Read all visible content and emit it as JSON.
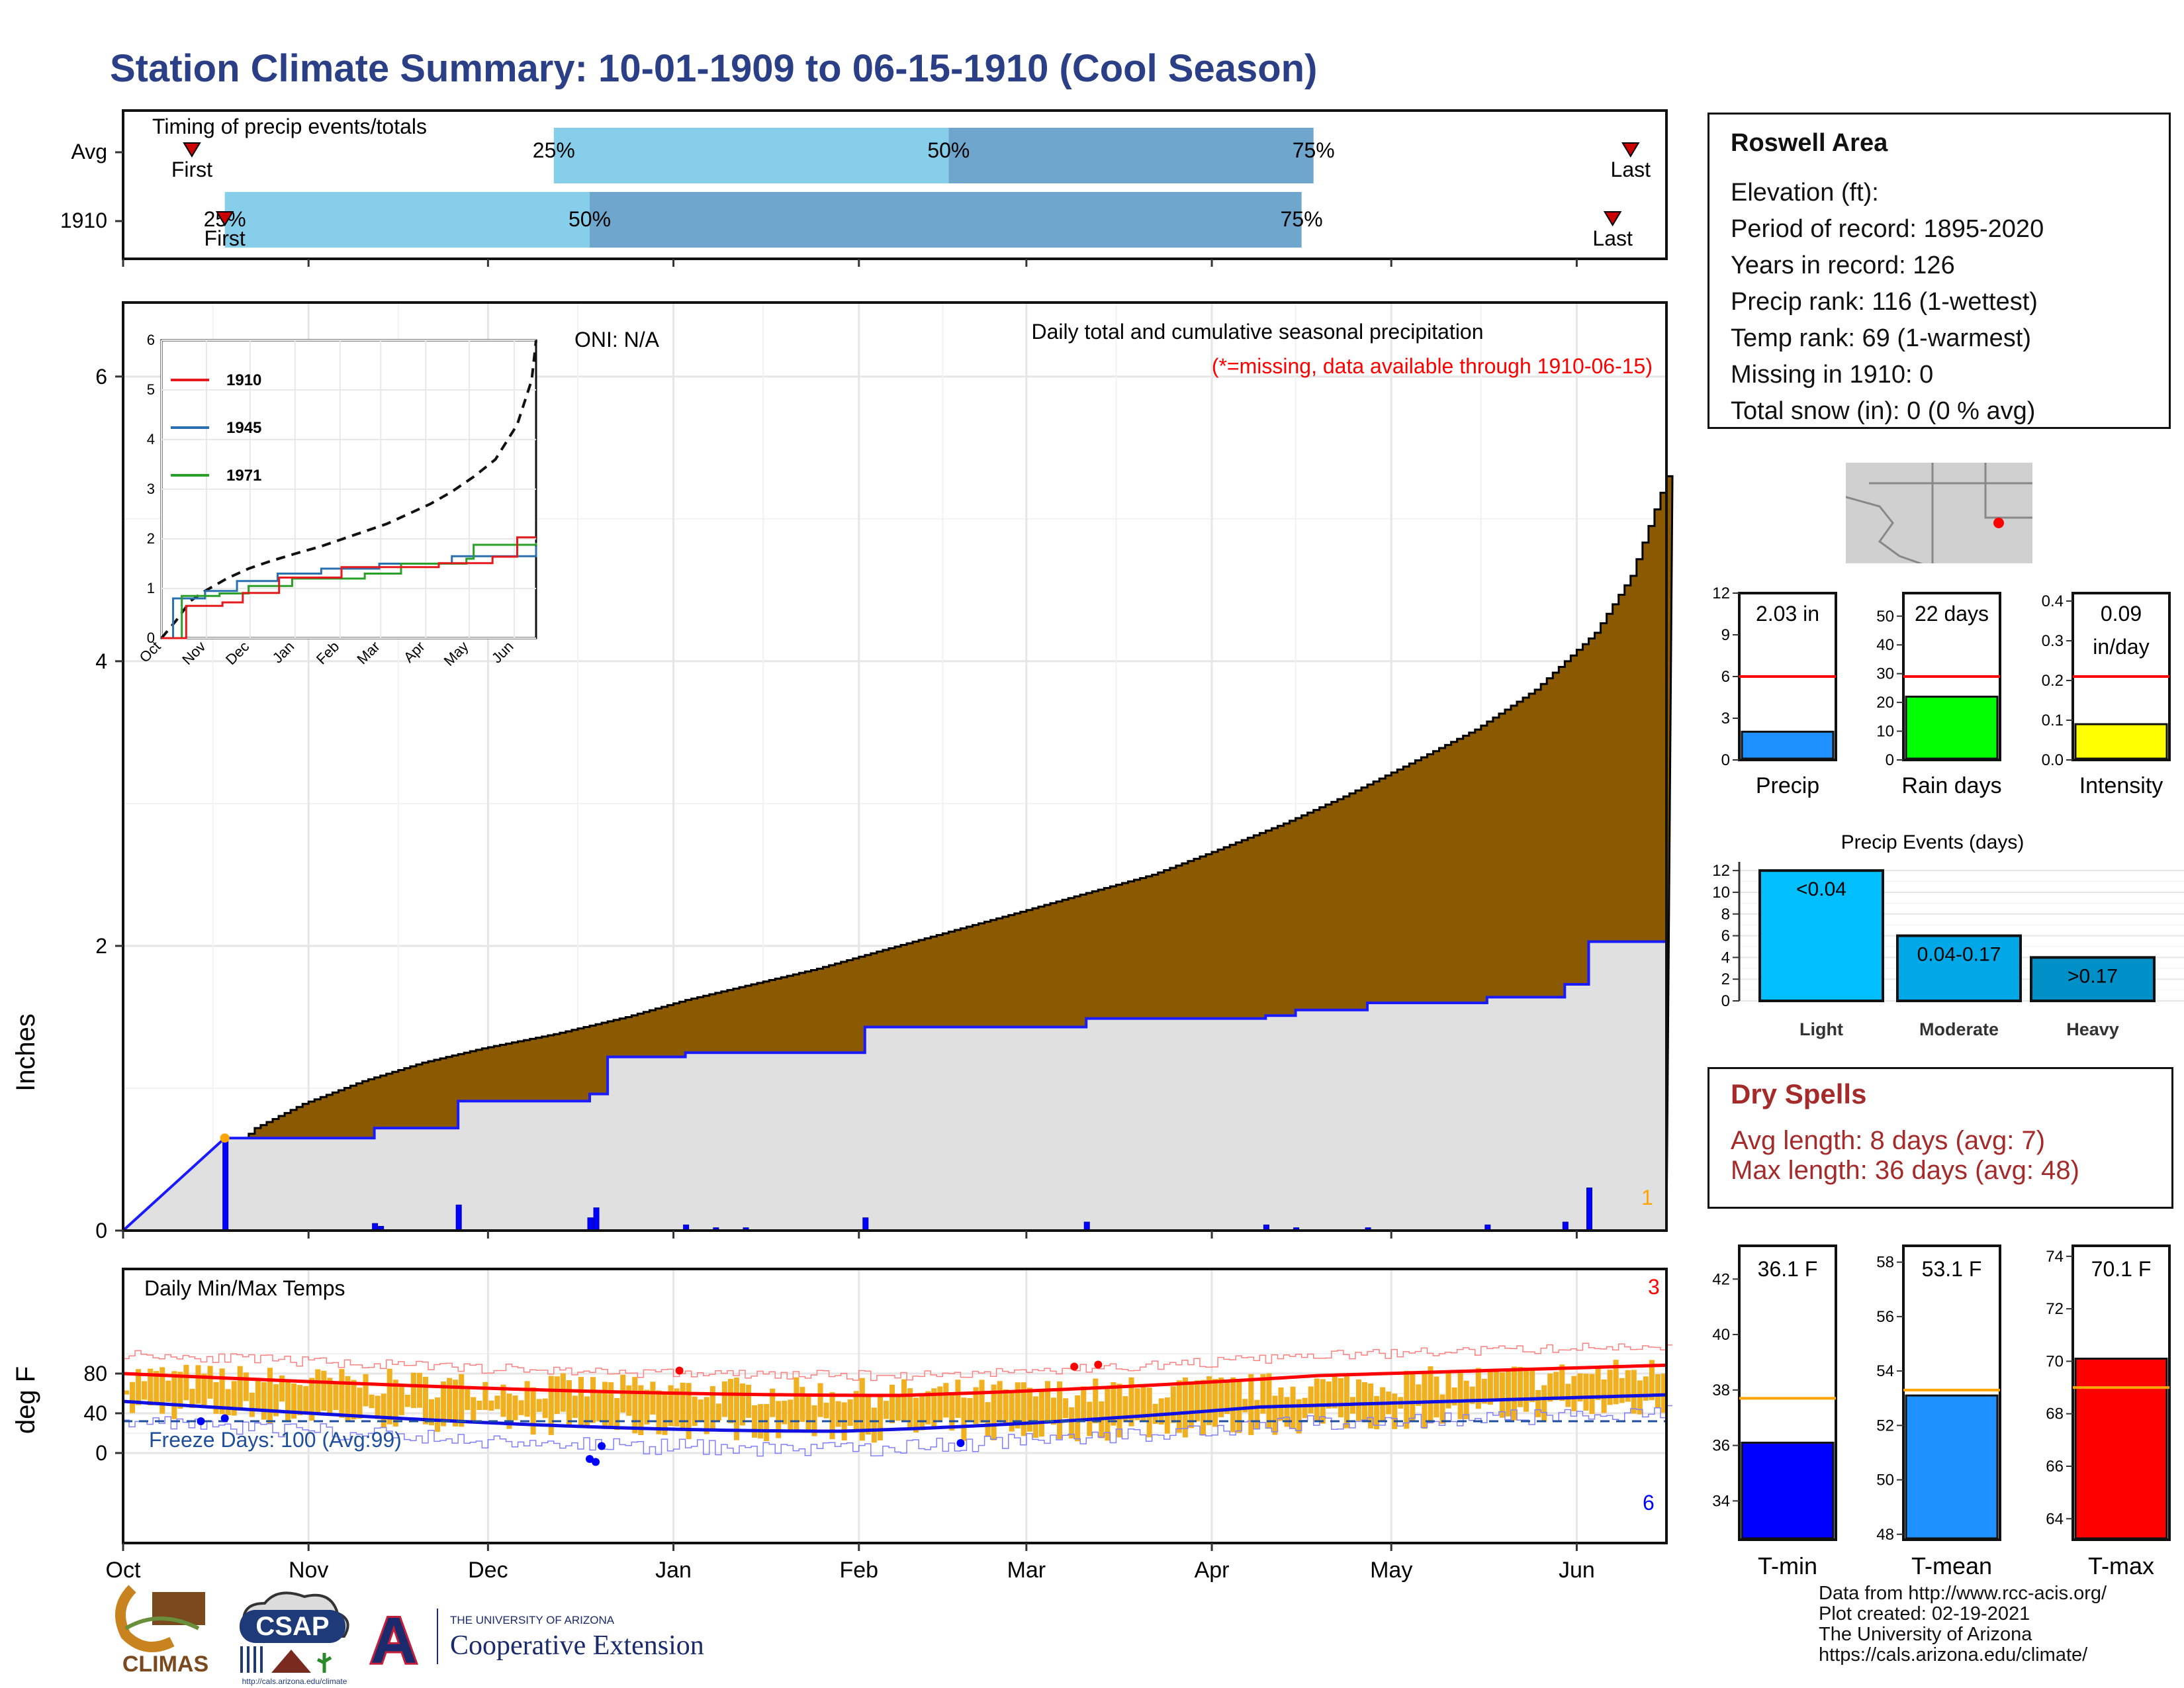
{
  "title": "Station Climate Summary: 10-01-1909 to 06-15-1910 (Cool Season)",
  "colors": {
    "title": "#2b3f86",
    "precip_fill": "#8b5a00",
    "normal_fill": "#e0e0e0",
    "blue": "#1a1aff",
    "timing_light": "#87ceeb",
    "timing_dark": "#6ea6cd",
    "temp_bar": "#f0b020",
    "tmax_line": "#ff0000",
    "tmin_line": "#1010e0",
    "missing": "#ff0000",
    "orange": "#ffa500"
  },
  "timing": {
    "panel_title": "Timing of precip events/totals",
    "rows": [
      {
        "label": "Avg",
        "first": "First",
        "last": "Last",
        "first_date": 11.5,
        "p25_date": 72,
        "p50_date": 138,
        "p75_date": 199,
        "last_date": 252,
        "p25_label": "25%",
        "p50_label": "50%",
        "p75_label": "75%"
      },
      {
        "label": "1910",
        "first": "First",
        "last": "Last",
        "first_date": 17,
        "p25_date": 17,
        "p50_date": 78,
        "p75_date": 197,
        "last_date": 249,
        "p25_label": "25%",
        "p50_label": "50%",
        "p75_label": "75%"
      }
    ]
  },
  "precip": {
    "ylabel": "Inches",
    "oni": "ONI: N/A",
    "note1": "Daily total and cumulative seasonal precipitation",
    "note2": "(*=missing, data available through 1910-06-15)",
    "missing_count": "1",
    "yticks": [
      "0",
      "2",
      "4",
      "6"
    ]
  },
  "inset": {
    "yticks": [
      "0",
      "1",
      "2",
      "3",
      "4",
      "5",
      "6"
    ],
    "months": [
      "Oct",
      "Nov",
      "Dec",
      "Jan",
      "Feb",
      "Mar",
      "Apr",
      "May",
      "Jun"
    ],
    "legend": [
      "1910",
      "1945",
      "1971"
    ]
  },
  "temps": {
    "ylabel": "deg F",
    "panel_title": "Daily Min/Max Temps",
    "freeze": "Freeze Days: 100 (Avg:99)",
    "count_top": "3",
    "count_bottom": "6",
    "yticks": [
      "0",
      "40",
      "80"
    ]
  },
  "months": [
    "Oct",
    "Nov",
    "Dec",
    "Jan",
    "Feb",
    "Mar",
    "Apr",
    "May",
    "Jun"
  ],
  "station": {
    "name": "Roswell Area",
    "lines": [
      "Elevation (ft):",
      "Period of record: 1895-2020",
      "Years in record: 126",
      "Precip rank: 116 (1-wettest)",
      "Temp rank: 69 (1-warmest)",
      "Missing in 1910: 0",
      "Total snow (in): 0 (0 % avg)"
    ]
  },
  "mini": [
    {
      "label": "Precip",
      "value_text": "2.03 in",
      "value": 2.03,
      "avg": 6,
      "max": 12,
      "yticks": [
        "0",
        "3",
        "6",
        "9",
        "12"
      ],
      "color": "#1e90ff"
    },
    {
      "label": "Rain days",
      "value_text": "22 days",
      "value": 22,
      "avg": 29,
      "max": 58,
      "yticks": [
        "0",
        "10",
        "20",
        "30",
        "40",
        "50"
      ],
      "color": "#00ff00"
    },
    {
      "label": "Intensity",
      "value_text": "0.09",
      "value_text2": "in/day",
      "value": 0.09,
      "avg": 0.21,
      "max": 0.42,
      "yticks": [
        "0.0",
        "0.1",
        "0.2",
        "0.3",
        "0.4"
      ],
      "color": "#ffff00"
    }
  ],
  "events": {
    "title": "Precip Events (days)",
    "yticks": [
      "0",
      "2",
      "4",
      "6",
      "8",
      "10",
      "12"
    ],
    "bars": [
      {
        "label": "Light",
        "value": 12,
        "text": "<0.04",
        "color": "#00bfff"
      },
      {
        "label": "Moderate",
        "value": 6,
        "text": "0.04-0.17",
        "color": "#00a8e8"
      },
      {
        "label": "Heavy",
        "value": 4,
        "text": ">0.17",
        "color": "#0090c8"
      }
    ]
  },
  "dry": {
    "title": "Dry Spells",
    "line1": "Avg length: 8 days (avg: 7)",
    "line2": "Max length: 36 days (avg: 48)"
  },
  "tbars": [
    {
      "label": "T-min",
      "value_text": "36.1 F",
      "value": 36.1,
      "avg": 37.7,
      "min": 32.6,
      "max": 43.2,
      "yticks": [
        "34",
        "36",
        "38",
        "40",
        "42"
      ],
      "color": "#0000ff"
    },
    {
      "label": "T-mean",
      "value_text": "53.1 F",
      "value": 53.1,
      "avg": 53.3,
      "min": 47.8,
      "max": 58.6,
      "yticks": [
        "48",
        "50",
        "52",
        "54",
        "56",
        "58"
      ],
      "color": "#1e90ff"
    },
    {
      "label": "T-max",
      "value_text": "70.1 F",
      "value": 70.1,
      "avg": 69.0,
      "min": 63.2,
      "max": 74.4,
      "yticks": [
        "64",
        "66",
        "68",
        "70",
        "72",
        "74"
      ],
      "color": "#ff0000"
    }
  ],
  "footer": {
    "lines": [
      "Data from http://www.rcc-acis.org/",
      "Plot created: 02-19-2021",
      "The University of Arizona",
      "https://cals.arizona.edu/climate/"
    ],
    "climas": "CLIMAS",
    "csap": "CSAP",
    "csap_url": "http://cals.arizona.edu/climate",
    "ua_top": "THE UNIVERSITY OF ARIZONA",
    "ua_bottom": "Cooperative Extension",
    "ua_letter": "A"
  }
}
